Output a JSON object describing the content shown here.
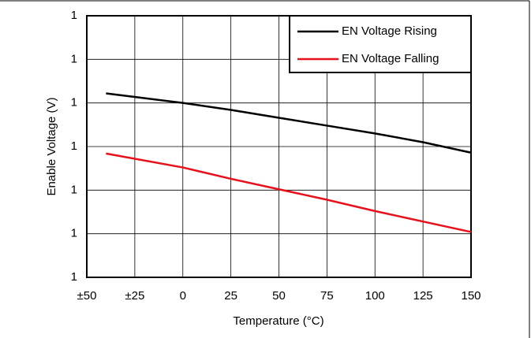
{
  "chart_data": {
    "type": "line",
    "x_label": "Temperature (°C)",
    "y_label": "Enable Voltage (V)",
    "x": [
      -40,
      0,
      25,
      50,
      75,
      100,
      125,
      150
    ],
    "series": [
      {
        "name": "EN Voltage Rising",
        "color": "#000000",
        "values": [
          1.211,
          1.2,
          1.192,
          1.183,
          1.174,
          1.165,
          1.155,
          1.143
        ]
      },
      {
        "name": "EN Voltage Falling",
        "color": "#e8101a",
        "values": [
          1.142,
          1.126,
          1.113,
          1.101,
          1.089,
          1.076,
          1.064,
          1.052
        ]
      }
    ],
    "xlim": [
      -50,
      150
    ],
    "xticks": [
      {
        "value": -50,
        "label": "±50"
      },
      {
        "value": -25,
        "label": "±25"
      },
      0,
      25,
      50,
      75,
      100,
      125,
      150
    ],
    "ylim": [
      1.0,
      1.3
    ],
    "yticks": [
      {
        "value": 1.0,
        "label": "1"
      },
      {
        "value": 1.05,
        "label": "1"
      },
      {
        "value": 1.1,
        "label": "1"
      },
      {
        "value": 1.15,
        "label": "1"
      },
      {
        "value": 1.2,
        "label": "1"
      },
      {
        "value": 1.25,
        "label": "1"
      },
      {
        "value": 1.3,
        "label": "1"
      }
    ],
    "grid": true,
    "legend": "top-right"
  }
}
